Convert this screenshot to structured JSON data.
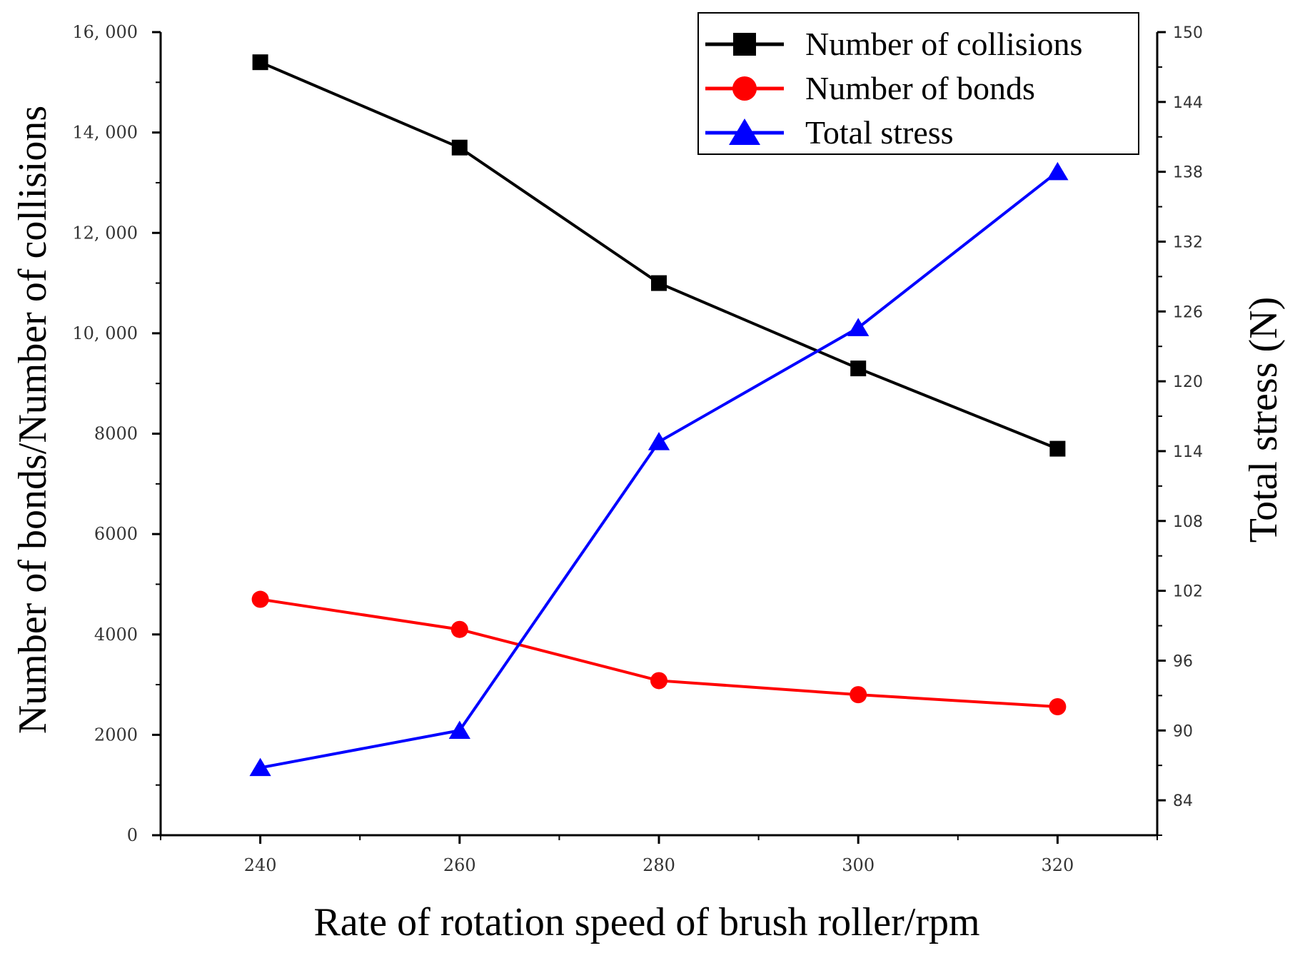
{
  "chart_data": {
    "type": "line",
    "x": [
      240,
      260,
      280,
      300,
      320
    ],
    "xlim": [
      230,
      330
    ],
    "xticks": [
      240,
      260,
      280,
      300,
      320
    ],
    "xtick_labels": [
      "240",
      "260",
      "280",
      "300",
      "320"
    ],
    "xlabel": "Rate of rotation speed of brush roller/rpm",
    "ylabel_left": "Number of bonds/Number of collisions",
    "ylim_left": [
      0,
      16000
    ],
    "yticks_left": [
      0,
      2000,
      4000,
      6000,
      8000,
      10000,
      12000,
      14000,
      16000
    ],
    "ytick_labels_left": [
      "0",
      "2000",
      "4000",
      "6000",
      "8000",
      "10, 000",
      "12, 000",
      "14, 000",
      "16, 000"
    ],
    "ylabel_right": "Total stress (N)",
    "ylim_right": [
      81,
      150
    ],
    "yticks_right": [
      84,
      90,
      96,
      102,
      108,
      114,
      120,
      126,
      132,
      138,
      144,
      150
    ],
    "ytick_labels_right": [
      "84",
      "90",
      "96",
      "102",
      "108",
      "114",
      "120",
      "126",
      "132",
      "138",
      "144",
      "150"
    ],
    "legend_position": "top-right",
    "series": [
      {
        "name": "Number of collisions",
        "axis": "left",
        "marker": "square",
        "color": "#000000",
        "values": [
          15400,
          13700,
          11000,
          9300,
          7700
        ]
      },
      {
        "name": "Number of bonds",
        "axis": "left",
        "marker": "circle",
        "color": "#ff0000",
        "values": [
          4700,
          4100,
          3080,
          2800,
          2560
        ]
      },
      {
        "name": "Total stress",
        "axis": "right",
        "marker": "triangle",
        "color": "#0000ff",
        "values": [
          86.8,
          90.0,
          114.8,
          124.6,
          138.0
        ]
      }
    ]
  }
}
